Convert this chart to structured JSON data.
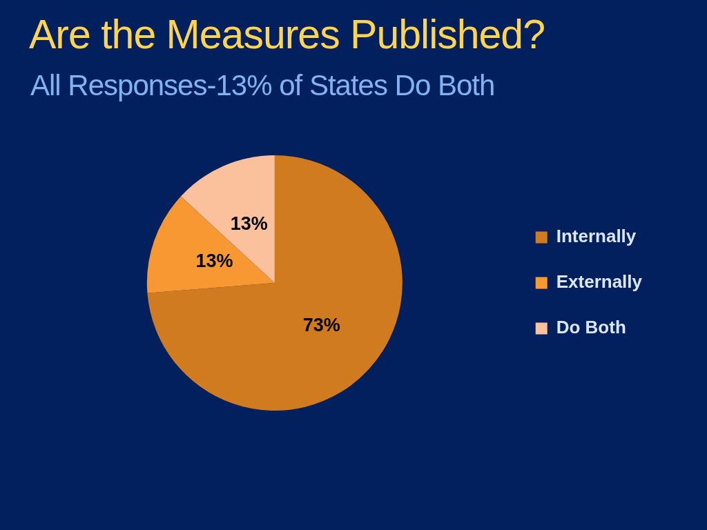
{
  "chart_data": {
    "type": "pie",
    "title": "Are the Measures Published?",
    "subtitle": "All Responses-13% of States Do Both",
    "categories": [
      "Internally",
      "Externally",
      "Do Both"
    ],
    "values": [
      73,
      13,
      13
    ],
    "colors": [
      "#d07b20",
      "#f79832",
      "#fbc09c"
    ],
    "value_labels": [
      "73%",
      "13%",
      "13%"
    ],
    "legend": "right"
  }
}
